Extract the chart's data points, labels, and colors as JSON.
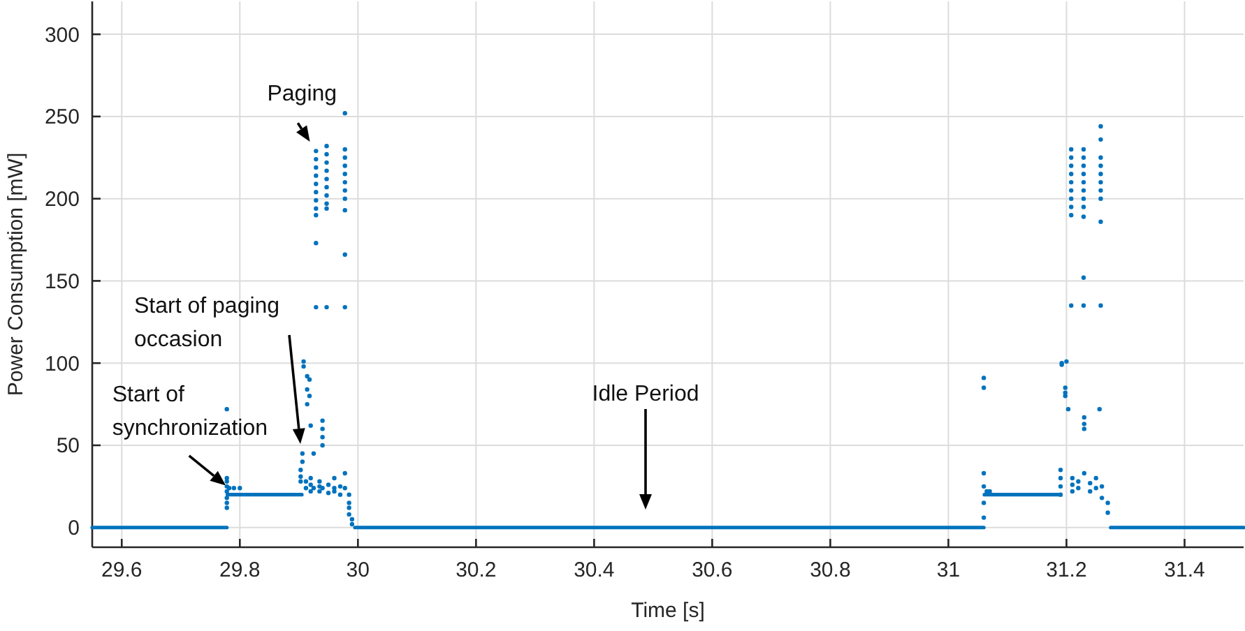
{
  "chart_data": {
    "type": "scatter",
    "xlabel": "Time [s]",
    "ylabel": "Power Consumption [mW]",
    "xlim": [
      29.55,
      31.5
    ],
    "ylim": [
      -12,
      320
    ],
    "xticks": [
      29.6,
      29.8,
      {
        "value": 30,
        "label": "30"
      },
      30.2,
      30.4,
      30.6,
      30.8,
      {
        "value": 31,
        "label": "31"
      },
      31.2,
      31.4
    ],
    "yticks": [
      0,
      50,
      100,
      150,
      200,
      250,
      300
    ],
    "grid": true,
    "marker": "circle",
    "series": [
      {
        "type": "line",
        "marker": "none",
        "color": "#0072bd",
        "x": [
          29.55,
          29.778
        ],
        "values": [
          0,
          0
        ]
      },
      {
        "type": "line",
        "marker": "none",
        "color": "#0072bd",
        "x": [
          29.779,
          29.905
        ],
        "values": [
          20,
          20
        ]
      },
      {
        "type": "line",
        "marker": "none",
        "color": "#0072bd",
        "x": [
          29.995,
          31.06
        ],
        "values": [
          0,
          0
        ]
      },
      {
        "type": "line",
        "marker": "none",
        "color": "#0072bd",
        "x": [
          31.061,
          31.19
        ],
        "values": [
          20,
          20
        ]
      },
      {
        "type": "line",
        "marker": "none",
        "color": "#0072bd",
        "x": [
          31.275,
          31.5
        ],
        "values": [
          0,
          0
        ]
      },
      {
        "color": "#0072bd",
        "x": [
          29.778,
          29.778,
          29.778,
          29.778,
          29.778,
          29.778,
          29.778,
          29.778,
          29.782,
          29.79,
          29.8,
          29.903,
          29.903,
          29.903,
          29.906,
          29.906,
          29.908,
          29.908,
          29.912,
          29.912,
          29.914,
          29.914,
          29.914,
          29.918,
          29.918,
          29.92,
          29.92,
          29.92,
          29.92,
          29.925,
          29.925,
          29.929,
          29.929,
          29.929,
          29.929,
          29.929,
          29.929,
          29.929,
          29.929,
          29.929,
          29.929,
          29.929,
          29.935,
          29.935,
          29.935,
          29.94,
          29.94,
          29.94,
          29.94,
          29.94,
          29.947,
          29.947,
          29.947,
          29.947,
          29.947,
          29.947,
          29.947,
          29.947,
          29.947,
          29.947,
          29.95,
          29.95,
          29.96,
          29.96,
          29.96,
          29.97,
          29.97,
          29.978,
          29.978,
          29.978,
          29.978,
          29.978,
          29.978,
          29.978,
          29.978,
          29.978,
          29.978,
          29.978,
          29.978,
          29.978,
          29.985,
          29.985,
          29.985,
          29.985,
          29.99,
          29.99,
          31.06,
          31.06,
          31.06,
          31.06,
          31.06,
          31.06,
          31.065,
          31.07,
          31.19,
          31.19,
          31.19,
          31.19,
          31.192,
          31.192,
          31.198,
          31.198,
          31.198,
          31.2,
          31.203,
          31.208,
          31.208,
          31.208,
          31.208,
          31.208,
          31.208,
          31.208,
          31.208,
          31.208,
          31.208,
          31.21,
          31.21,
          31.21,
          31.22,
          31.22,
          31.229,
          31.229,
          31.229,
          31.229,
          31.229,
          31.229,
          31.229,
          31.229,
          31.229,
          31.229,
          31.229,
          31.23,
          31.23,
          31.23,
          31.23,
          31.24,
          31.24,
          31.25,
          31.25,
          31.256,
          31.258,
          31.258,
          31.258,
          31.258,
          31.258,
          31.258,
          31.258,
          31.258,
          31.258,
          31.258,
          31.26,
          31.26,
          31.27,
          31.27
        ],
        "values": [
          72,
          30,
          28,
          25,
          22,
          18,
          15,
          12,
          24,
          24,
          24,
          35,
          31,
          28,
          40,
          45,
          101,
          98,
          24,
          28,
          92,
          84,
          75,
          90,
          80,
          62,
          22,
          30,
          26,
          45,
          24,
          173,
          229,
          224,
          219,
          214,
          209,
          204,
          199,
          194,
          190,
          134,
          22,
          28,
          25,
          65,
          60,
          55,
          50,
          24,
          232,
          227,
          222,
          217,
          212,
          207,
          202,
          197,
          194,
          134,
          26,
          21,
          24,
          30,
          22,
          25,
          20,
          252,
          230,
          225,
          220,
          215,
          210,
          205,
          200,
          193,
          166,
          134,
          33,
          24,
          20,
          15,
          12,
          8,
          5,
          2,
          91,
          85,
          33,
          25,
          15,
          6,
          22,
          22,
          35,
          30,
          25,
          20,
          100,
          99,
          85,
          80,
          82,
          101,
          72,
          230,
          225,
          220,
          215,
          210,
          205,
          200,
          195,
          190,
          135,
          30,
          22,
          26,
          24,
          28,
          230,
          225,
          220,
          215,
          210,
          205,
          200,
          195,
          189,
          152,
          135,
          67,
          63,
          60,
          33,
          22,
          27,
          24,
          30,
          72,
          244,
          236,
          225,
          220,
          215,
          210,
          205,
          200,
          186,
          135,
          25,
          18,
          15,
          9
        ]
      }
    ],
    "annotations": [
      {
        "text": "Paging",
        "x": 29.929,
        "y": 229
      },
      "Start of paging\noccasion",
      {
        "text": "Start of\nsynchronization",
        "x": 29.778,
        "y": 25
      },
      "Idle Period"
    ]
  }
}
